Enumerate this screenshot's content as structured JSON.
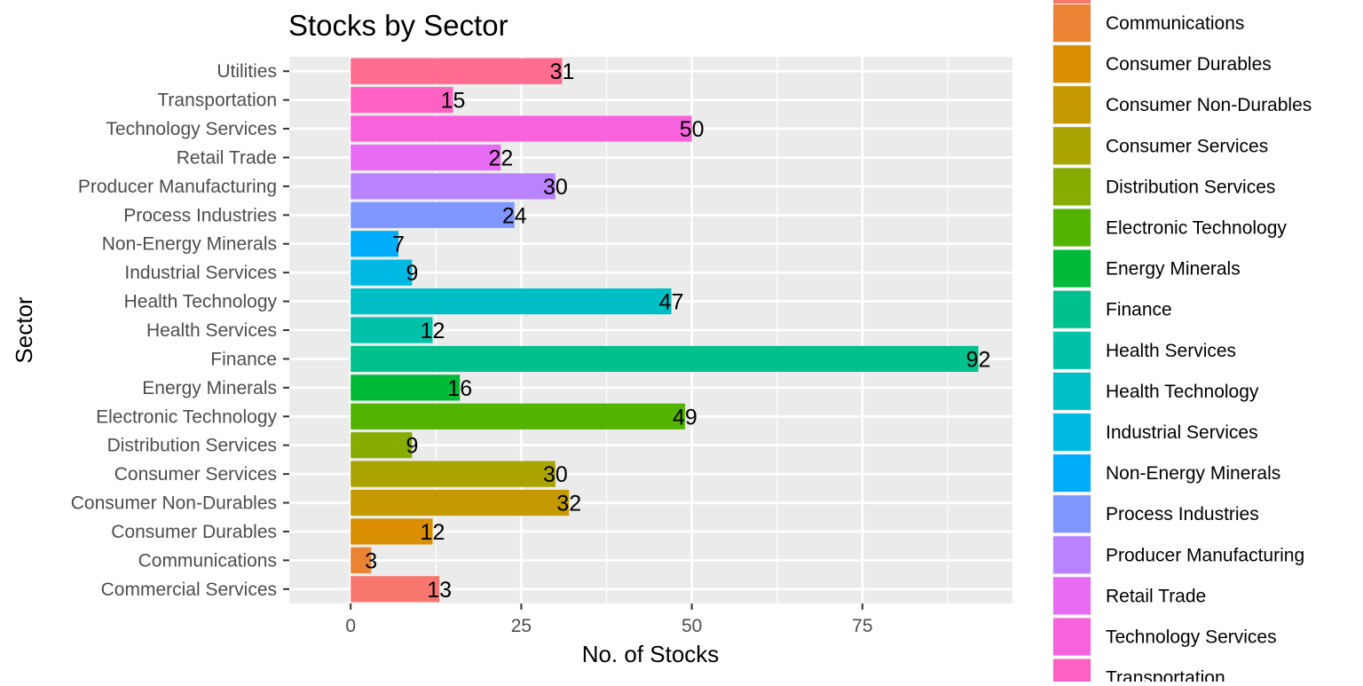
{
  "chart_data": {
    "type": "bar",
    "orientation": "horizontal",
    "title": "Stocks by Sector",
    "xlabel": "No. of Stocks",
    "ylabel": "Sector",
    "xlim": [
      -9,
      97
    ],
    "x_ticks": [
      0,
      25,
      50,
      75
    ],
    "grid": true,
    "legend_position": "right",
    "categories": [
      "Commercial Services",
      "Communications",
      "Consumer Durables",
      "Consumer Non-Durables",
      "Consumer Services",
      "Distribution Services",
      "Electronic Technology",
      "Energy Minerals",
      "Finance",
      "Health Services",
      "Health Technology",
      "Industrial Services",
      "Non-Energy Minerals",
      "Process Industries",
      "Producer Manufacturing",
      "Retail Trade",
      "Technology Services",
      "Transportation",
      "Utilities"
    ],
    "values": [
      13,
      3,
      12,
      32,
      30,
      9,
      49,
      16,
      92,
      12,
      47,
      9,
      7,
      24,
      30,
      22,
      50,
      15,
      31
    ],
    "colors": [
      "#F8766D",
      "#EB8335",
      "#DA8F00",
      "#C49A00",
      "#A9A400",
      "#86AC00",
      "#53B400",
      "#00BA38",
      "#00C08B",
      "#00C1AA",
      "#00BFC4",
      "#00B9E3",
      "#00ADFA",
      "#7F96FF",
      "#B983FF",
      "#E76BF3",
      "#F962DD",
      "#FF61C3",
      "#FF6C91"
    ],
    "legend_entries": [
      "Communications",
      "Consumer Durables",
      "Consumer Non-Durables",
      "Consumer Services",
      "Distribution Services",
      "Electronic Technology",
      "Energy Minerals",
      "Finance",
      "Health Services",
      "Health Technology",
      "Industrial Services",
      "Non-Energy Minerals",
      "Process Industries",
      "Producer Manufacturing",
      "Retail Trade",
      "Technology Services",
      "Transportation"
    ],
    "legend_colors": [
      "#EB8335",
      "#DA8F00",
      "#C49A00",
      "#A9A400",
      "#86AC00",
      "#53B400",
      "#00BA38",
      "#00C08B",
      "#00C1AA",
      "#00BFC4",
      "#00B9E3",
      "#00ADFA",
      "#7F96FF",
      "#B983FF",
      "#E76BF3",
      "#F962DD",
      "#FF61C3"
    ]
  }
}
